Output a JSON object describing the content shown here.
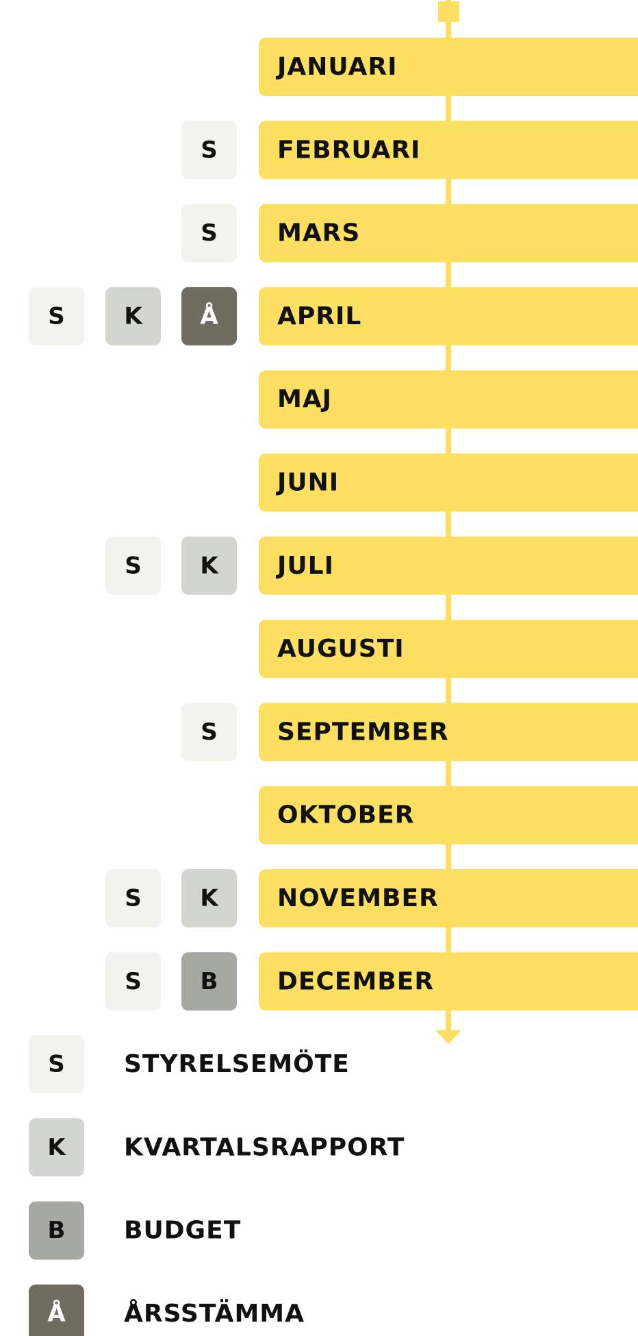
{
  "timeline": {
    "rows": [
      {
        "month": "JANUARI",
        "badges": []
      },
      {
        "month": "FEBRUARI",
        "badges": [
          "S"
        ]
      },
      {
        "month": "MARS",
        "badges": [
          "S"
        ]
      },
      {
        "month": "APRIL",
        "badges": [
          "S",
          "K",
          "Å"
        ]
      },
      {
        "month": "MAJ",
        "badges": []
      },
      {
        "month": "JUNI",
        "badges": []
      },
      {
        "month": "JULI",
        "badges": [
          "S",
          "K"
        ]
      },
      {
        "month": "AUGUSTI",
        "badges": []
      },
      {
        "month": "SEPTEMBER",
        "badges": [
          "S"
        ]
      },
      {
        "month": "OKTOBER",
        "badges": []
      },
      {
        "month": "NOVEMBER",
        "badges": [
          "S",
          "K"
        ]
      },
      {
        "month": "DECEMBER",
        "badges": [
          "S",
          "B"
        ]
      }
    ]
  },
  "legend": {
    "items": [
      {
        "key": "S",
        "label": "STYRELSEMÖTE",
        "color": "#f2f2ee",
        "text_color": "#111111"
      },
      {
        "key": "K",
        "label": "KVARTALSRAPPORT",
        "color": "#d3d6d0",
        "text_color": "#111111"
      },
      {
        "key": "B",
        "label": "BUDGET",
        "color": "#a6a8a2",
        "text_color": "#111111"
      },
      {
        "key": "Å",
        "label": "ÅRSSTÄMMA",
        "color": "#6e6d60",
        "text_color": "#ffffff"
      }
    ]
  }
}
